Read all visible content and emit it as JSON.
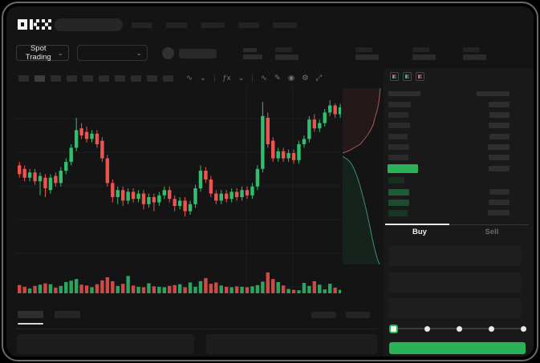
{
  "app": {
    "logo_alt": "OKX"
  },
  "colors": {
    "accent_green": "#2bb158",
    "candle_up": "#2fbf6f",
    "candle_down": "#ef5350",
    "bg": "#141414",
    "panel_bg": "#191919"
  },
  "header": {
    "market_selector": "Spot Trading",
    "caret": "⌄"
  },
  "topbar": {
    "nav_placeholder_widths": [
      26,
      26,
      30,
      26,
      30
    ]
  },
  "symbol_row": {
    "stat_group_lefts": [
      335,
      435,
      506,
      569
    ]
  },
  "chart_toolbar": {
    "timeframe_placeholder_count": 10,
    "icons": [
      {
        "name": "candle-type-icon",
        "glyph": "∿"
      },
      {
        "name": "chevron-down-icon",
        "glyph": "⌄"
      },
      {
        "name": "separator",
        "glyph": "|"
      },
      {
        "name": "indicator-fx-icon",
        "glyph": "ƒx"
      },
      {
        "name": "chevron-down-icon",
        "glyph": "⌄"
      },
      {
        "name": "separator",
        "glyph": "|"
      },
      {
        "name": "line-tool-icon",
        "glyph": "∿"
      },
      {
        "name": "draw-tool-icon",
        "glyph": "✎"
      },
      {
        "name": "camera-icon",
        "glyph": "◉"
      },
      {
        "name": "settings-icon",
        "glyph": "⚙"
      },
      {
        "name": "fullscreen-icon",
        "glyph": "⤢"
      }
    ]
  },
  "chart_data": {
    "type": "candlestick",
    "title": "",
    "xlabel": "",
    "ylabel": "",
    "ylim": [
      0,
      101
    ],
    "grid": true,
    "colors": {
      "up": "#2fbf6f",
      "down": "#ef5350"
    },
    "candles_format": [
      "open",
      "high",
      "low",
      "close",
      "volume"
    ],
    "candles": [
      [
        58,
        60,
        51,
        53,
        38
      ],
      [
        56,
        58,
        49,
        51,
        30
      ],
      [
        51,
        56,
        49,
        54,
        22
      ],
      [
        54,
        56,
        47,
        49,
        34
      ],
      [
        49,
        54,
        41,
        52,
        40
      ],
      [
        51,
        53,
        40,
        45,
        46
      ],
      [
        44,
        53,
        42,
        51,
        42
      ],
      [
        52,
        54,
        46,
        48,
        26
      ],
      [
        48,
        57,
        46,
        55,
        34
      ],
      [
        55,
        62,
        53,
        60,
        52
      ],
      [
        60,
        70,
        58,
        68,
        58
      ],
      [
        68,
        85,
        66,
        78,
        66
      ],
      [
        79,
        82,
        73,
        75,
        40
      ],
      [
        77,
        80,
        71,
        73,
        36
      ],
      [
        73,
        78,
        71,
        76,
        28
      ],
      [
        76,
        78,
        68,
        70,
        42
      ],
      [
        72,
        74,
        60,
        62,
        60
      ],
      [
        62,
        64,
        46,
        48,
        74
      ],
      [
        48,
        50,
        37,
        40,
        56
      ],
      [
        40,
        46,
        36,
        44,
        34
      ],
      [
        44,
        46,
        35,
        38,
        44
      ],
      [
        38,
        45,
        36,
        43,
        80
      ],
      [
        43,
        45,
        37,
        39,
        36
      ],
      [
        39,
        44,
        37,
        42,
        30
      ],
      [
        42,
        44,
        33,
        36,
        28
      ],
      [
        36,
        42,
        34,
        40,
        46
      ],
      [
        40,
        42,
        32,
        37,
        32
      ],
      [
        37,
        43,
        35,
        41,
        30
      ],
      [
        41,
        46,
        39,
        44,
        28
      ],
      [
        44,
        46,
        37,
        39,
        34
      ],
      [
        39,
        41,
        32,
        35,
        38
      ],
      [
        35,
        40,
        33,
        38,
        42
      ],
      [
        38,
        40,
        29,
        32,
        28
      ],
      [
        32,
        38,
        30,
        36,
        50
      ],
      [
        36,
        47,
        34,
        45,
        30
      ],
      [
        45,
        58,
        43,
        55,
        56
      ],
      [
        55,
        57,
        48,
        50,
        70
      ],
      [
        50,
        52,
        40,
        42,
        44
      ],
      [
        42,
        44,
        36,
        38,
        50
      ],
      [
        38,
        44,
        36,
        42,
        36
      ],
      [
        42,
        44,
        37,
        39,
        30
      ],
      [
        39,
        45,
        37,
        43,
        28
      ],
      [
        43,
        45,
        38,
        40,
        32
      ],
      [
        40,
        46,
        38,
        44,
        30
      ],
      [
        44,
        46,
        39,
        41,
        28
      ],
      [
        41,
        48,
        39,
        46,
        32
      ],
      [
        46,
        58,
        44,
        56,
        38
      ],
      [
        56,
        94,
        54,
        86,
        54
      ],
      [
        85,
        88,
        68,
        70,
        96
      ],
      [
        72,
        74,
        60,
        62,
        66
      ],
      [
        62,
        68,
        60,
        66,
        52
      ],
      [
        66,
        68,
        60,
        62,
        36
      ],
      [
        62,
        67,
        60,
        65,
        20
      ],
      [
        65,
        67,
        59,
        61,
        16
      ],
      [
        61,
        72,
        59,
        70,
        14
      ],
      [
        70,
        75,
        68,
        73,
        48
      ],
      [
        73,
        86,
        71,
        84,
        34
      ],
      [
        84,
        87,
        77,
        79,
        56
      ],
      [
        79,
        84,
        77,
        82,
        40
      ],
      [
        82,
        90,
        80,
        88,
        18
      ],
      [
        88,
        95,
        86,
        92,
        44
      ],
      [
        92,
        93,
        85,
        87,
        26
      ],
      [
        87,
        93,
        85,
        91,
        16
      ]
    ],
    "depth": {
      "asks": [
        [
          47,
          0
        ],
        [
          46,
          10
        ],
        [
          45,
          18
        ],
        [
          43,
          28
        ],
        [
          40,
          38
        ],
        [
          38,
          46
        ],
        [
          34,
          54
        ],
        [
          30,
          60
        ],
        [
          26,
          65
        ],
        [
          22,
          70
        ],
        [
          15,
          74
        ],
        [
          8,
          78
        ],
        [
          0,
          81
        ]
      ],
      "bids": [
        [
          0,
          85
        ],
        [
          6,
          89
        ],
        [
          10,
          93
        ],
        [
          13,
          98
        ],
        [
          16,
          105
        ],
        [
          19,
          113
        ],
        [
          22,
          123
        ],
        [
          25,
          134
        ],
        [
          28,
          146
        ],
        [
          31,
          159
        ],
        [
          34,
          173
        ],
        [
          37,
          188
        ],
        [
          40,
          201
        ],
        [
          43,
          212
        ],
        [
          46,
          220
        ]
      ]
    }
  },
  "orderbook": {
    "layout_icons": [
      "orderbook-layout-all-icon",
      "orderbook-layout-bids-icon",
      "orderbook-layout-asks-icon"
    ],
    "header_bar_widths": [
      40,
      41
    ],
    "ask_rows": [
      [
        28,
        26
      ],
      [
        25,
        25
      ],
      [
        27,
        26
      ],
      [
        24,
        25
      ],
      [
        26,
        27
      ],
      [
        25,
        26
      ]
    ],
    "price_bar": {
      "left_width": 38,
      "right_width": 26,
      "color": "#2bb158"
    },
    "bid_rows": [
      {
        "l": 20,
        "r": 0,
        "c": "#16301f"
      },
      {
        "l": 26,
        "r": 25,
        "c": "#1e5c36"
      },
      {
        "l": 26,
        "r": 26,
        "c": "#1a4c2d"
      },
      {
        "l": 24,
        "r": 27,
        "c": "#153723"
      }
    ],
    "tabs": {
      "buy": "Buy",
      "sell": "Sell",
      "active": "buy"
    }
  },
  "trade_form": {
    "input_placeholder_count": 3,
    "slider": {
      "stops": 5,
      "active_index": 0
    }
  }
}
